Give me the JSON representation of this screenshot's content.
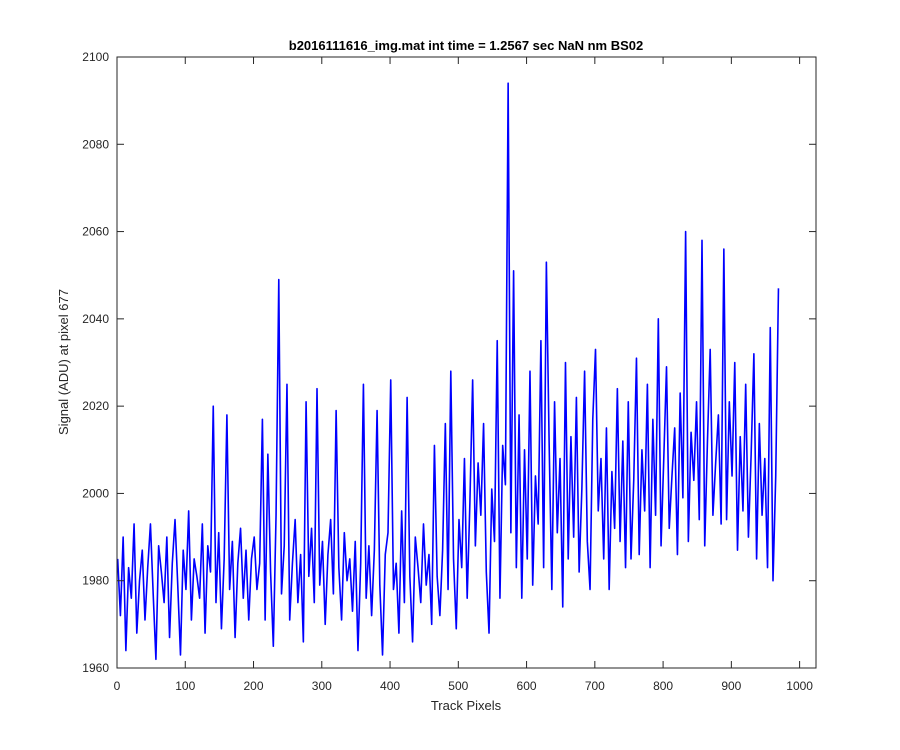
{
  "chart_data": {
    "type": "line",
    "title": "b2016111616_img.mat int time = 1.2567 sec  NaN nm BS02",
    "xlabel": "Track Pixels",
    "ylabel": "Signal (ADU) at pixel 677",
    "xlim": [
      0,
      1024
    ],
    "ylim": [
      1960,
      2100
    ],
    "xticks": [
      0,
      100,
      200,
      300,
      400,
      500,
      600,
      700,
      800,
      900,
      1000
    ],
    "yticks": [
      1960,
      1980,
      2000,
      2020,
      2040,
      2060,
      2080,
      2100
    ],
    "grid": false,
    "legend": "none",
    "series": [
      {
        "color": "#0000ff",
        "x_start": 1,
        "x_step": 4,
        "values": [
          1985,
          1972,
          1990,
          1964,
          1983,
          1976,
          1993,
          1968,
          1980,
          1987,
          1971,
          1983,
          1993,
          1977,
          1962,
          1988,
          1982,
          1975,
          1990,
          1967,
          1984,
          1994,
          1979,
          1963,
          1987,
          1978,
          1996,
          1971,
          1985,
          1981,
          1976,
          1993,
          1968,
          1988,
          1982,
          2020,
          1975,
          1991,
          1969,
          1985,
          2018,
          1978,
          1989,
          1967,
          1984,
          1992,
          1976,
          1987,
          1971,
          1985,
          1990,
          1978,
          1984,
          2017,
          1971,
          2009,
          1982,
          1965,
          1995,
          2049,
          1977,
          1988,
          2025,
          1971,
          1984,
          1994,
          1975,
          1986,
          1966,
          2021,
          1981,
          1992,
          1975,
          2024,
          1979,
          1989,
          1970,
          1986,
          1994,
          1977,
          2019,
          1983,
          1971,
          1991,
          1980,
          1985,
          1973,
          1989,
          1964,
          1984,
          2025,
          1976,
          1988,
          1972,
          1987,
          2019,
          1979,
          1963,
          1986,
          1991,
          2026,
          1978,
          1984,
          1968,
          1996,
          1975,
          2022,
          1981,
          1966,
          1990,
          1983,
          1975,
          1993,
          1979,
          1986,
          1970,
          2011,
          1981,
          1972,
          1987,
          2016,
          1978,
          2028,
          1985,
          1969,
          1994,
          1983,
          2008,
          1976,
          1998,
          2026,
          1988,
          2007,
          1995,
          2016,
          1982,
          1968,
          2001,
          1989,
          2035,
          1976,
          2011,
          2002,
          2094,
          1991,
          2051,
          1983,
          2018,
          1976,
          2010,
          1985,
          2028,
          1979,
          2004,
          1993,
          2035,
          1983,
          2053,
          2012,
          1978,
          2021,
          1991,
          2008,
          1974,
          2030,
          1985,
          2013,
          1990,
          2022,
          1982,
          2001,
          2028,
          1989,
          1978,
          2017,
          2033,
          1996,
          2008,
          1985,
          2015,
          1978,
          2005,
          1992,
          2024,
          1989,
          2012,
          1983,
          2021,
          1985,
          2003,
          2031,
          1986,
          2010,
          1996,
          2025,
          1983,
          2017,
          1995,
          2040,
          1988,
          2008,
          2029,
          1992,
          2004,
          2015,
          1986,
          2023,
          1999,
          2060,
          1989,
          2014,
          2003,
          2021,
          1994,
          2058,
          1988,
          2012,
          2033,
          1995,
          2007,
          2018,
          1993,
          2056,
          1994,
          2021,
          2004,
          2030,
          1987,
          2013,
          1996,
          2025,
          1990,
          2009,
          2032,
          1985,
          2016,
          1995,
          2008,
          1983,
          2038,
          1980,
          2004,
          2047
        ]
      }
    ]
  }
}
